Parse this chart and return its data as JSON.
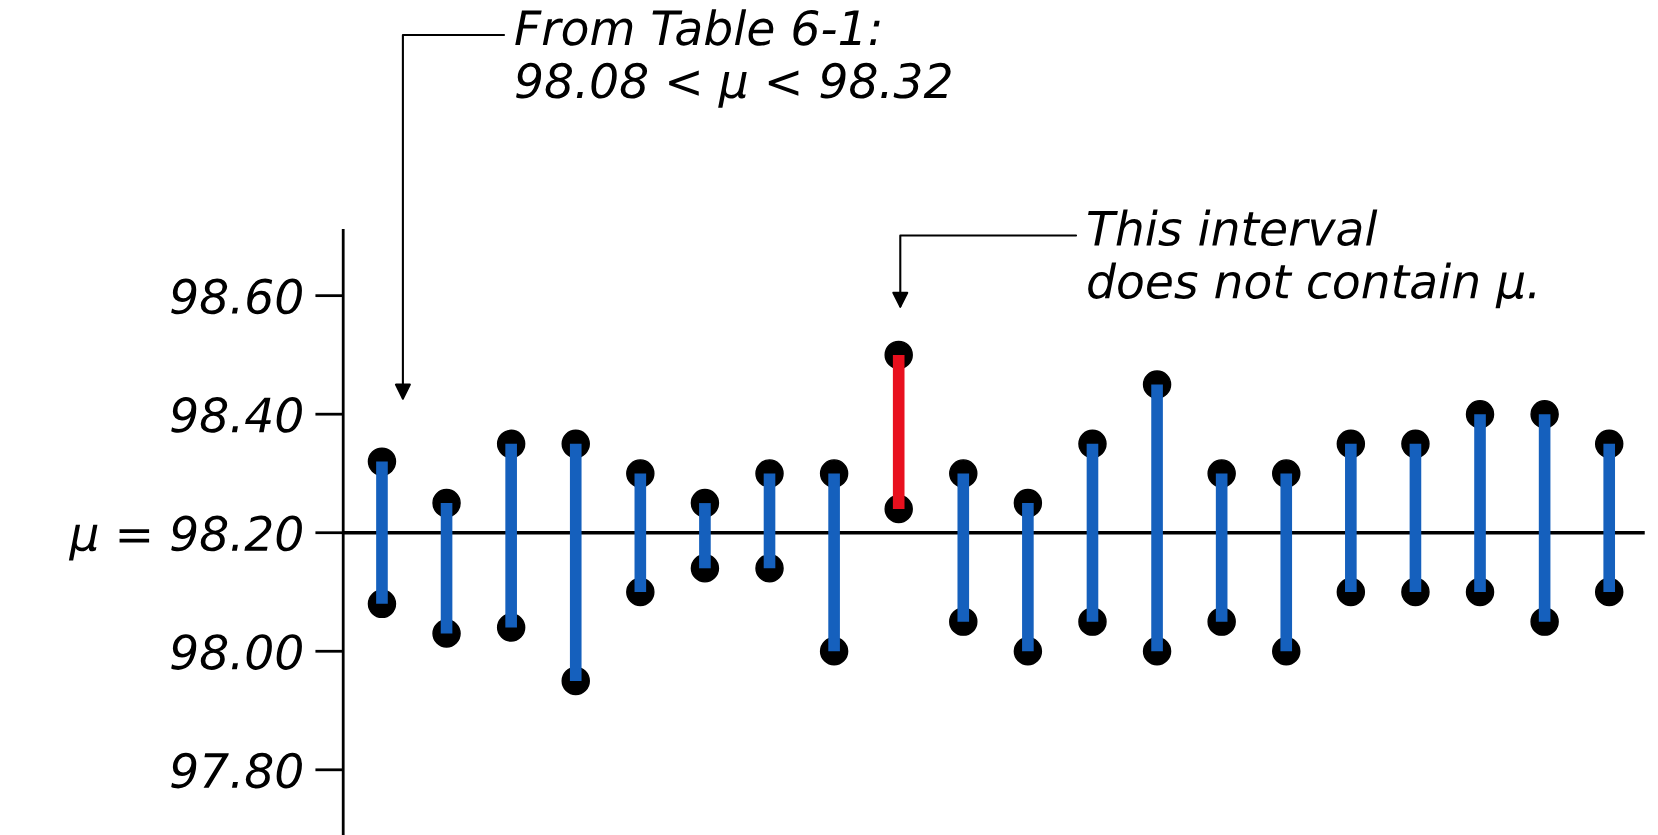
{
  "chart_data": {
    "type": "bar",
    "categories": [
      null,
      null,
      null,
      null,
      null,
      null,
      null,
      null,
      null,
      null,
      null,
      null,
      null,
      null,
      null,
      null,
      null,
      null,
      null,
      null
    ],
    "base": [
      98.08,
      98.03,
      98.04,
      97.95,
      98.1,
      98.14,
      98.14,
      98.0,
      98.24,
      98.05,
      98.0,
      98.05,
      98.0,
      98.05,
      98.0,
      98.1,
      98.1,
      98.1,
      98.05,
      98.1
    ],
    "values": [
      0.24,
      0.22,
      0.31,
      0.4,
      0.2,
      0.11,
      0.16,
      0.3,
      0.26,
      0.25,
      0.25,
      0.3,
      0.45,
      0.25,
      0.3,
      0.25,
      0.25,
      0.3,
      0.35,
      0.25
    ],
    "colors": [
      "#1560bd",
      "#1560bd",
      "#1560bd",
      "#1560bd",
      "#1560bd",
      "#1560bd",
      "#1560bd",
      "#1560bd",
      "#e8101e",
      "#1560bd",
      "#1560bd",
      "#1560bd",
      "#1560bd",
      "#1560bd",
      "#1560bd",
      "#1560bd",
      "#1560bd",
      "#1560bd",
      "#1560bd",
      "#1560bd"
    ],
    "series": [
      {
        "type": "scatter",
        "color": "#000000",
        "values": [
          98.32,
          98.25,
          98.35,
          98.35,
          98.3,
          98.25,
          98.3,
          98.3,
          98.5,
          98.3,
          98.25,
          98.35,
          98.45,
          98.3,
          98.3,
          98.35,
          98.35,
          98.4,
          98.4,
          98.35
        ]
      },
      {
        "type": "scatter",
        "color": "#000000",
        "values": [
          98.08,
          98.03,
          98.04,
          97.95,
          98.1,
          98.14,
          98.14,
          98.0,
          98.24,
          98.05,
          98.0,
          98.05,
          98.0,
          98.05,
          98.0,
          98.1,
          98.1,
          98.1,
          98.05,
          98.1
        ]
      }
    ],
    "marker": "circle",
    "ylim": [
      97.69,
      98.71
    ],
    "yticks": [
      {
        "value": 97.8,
        "label": "97.80"
      },
      {
        "value": 98.0,
        "label": "98.00"
      },
      {
        "value": 98.2,
        "label": "μ = 98.20"
      },
      {
        "value": 98.4,
        "label": "98.40"
      },
      {
        "value": 98.6,
        "label": "98.60"
      }
    ],
    "tick_labels": "y",
    "grid": false,
    "legend": false,
    "ref_lines": [
      {
        "axis": "y",
        "value": 98.2,
        "color": "#000000"
      }
    ],
    "annotations": [
      "From Table 6-1:\n98.08 < μ < 98.32",
      "This interval\ndoes not contain μ."
    ]
  }
}
